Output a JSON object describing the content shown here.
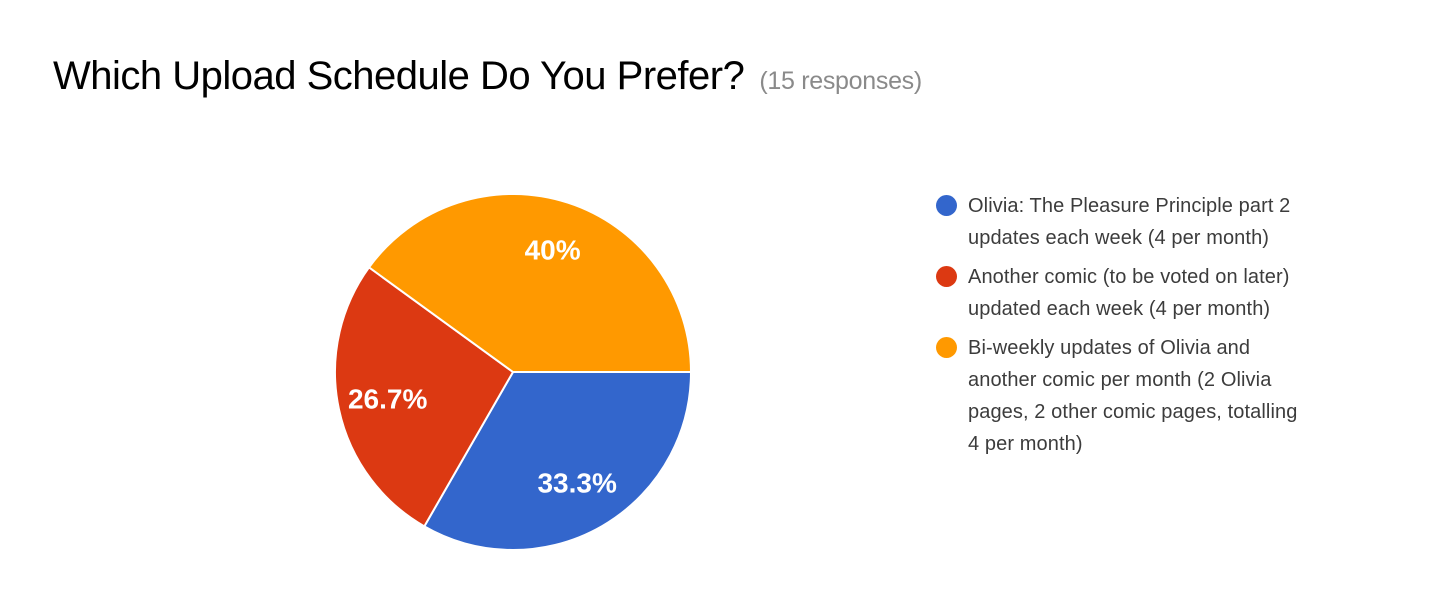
{
  "page": {
    "background_color": "#ffffff"
  },
  "header": {
    "title": "Which Upload Schedule Do You Prefer?",
    "responses_note": "(15 responses)"
  },
  "chart_data": {
    "type": "pie",
    "title": "Which Upload Schedule Do You Prefer?",
    "responses_count": 15,
    "start_angle_deg": 0,
    "direction": "clockwise",
    "legend_position": "right",
    "grid": false,
    "slices": [
      {
        "label": "Olivia: The Pleasure Principle part 2 updates each week (4 per month)",
        "percent": 33.3,
        "display_label": "33.3%",
        "color": "#3366CC"
      },
      {
        "label": "Another comic (to be voted on later) updated each week (4 per month)",
        "percent": 26.7,
        "display_label": "26.7%",
        "color": "#DC3912"
      },
      {
        "label": "Bi-weekly updates of Olivia and another comic per month (2 Olivia pages, 2 other comic pages, totalling 4 per month)",
        "percent": 40,
        "display_label": "40%",
        "color": "#FF9900"
      }
    ],
    "label_text_color": "#ffffff"
  },
  "legend": {
    "items": [
      {
        "color": "#3366CC",
        "lines": [
          "Olivia: The Pleasure Principle part 2",
          "updates each week (4 per month)"
        ]
      },
      {
        "color": "#DC3912",
        "lines": [
          "Another comic (to be voted on later)",
          "updated each week (4 per month)"
        ]
      },
      {
        "color": "#FF9900",
        "lines": [
          "Bi-weekly updates of Olivia and",
          "another comic per month (2 Olivia",
          "pages, 2 other comic pages, totalling",
          "4 per month)"
        ]
      }
    ]
  }
}
